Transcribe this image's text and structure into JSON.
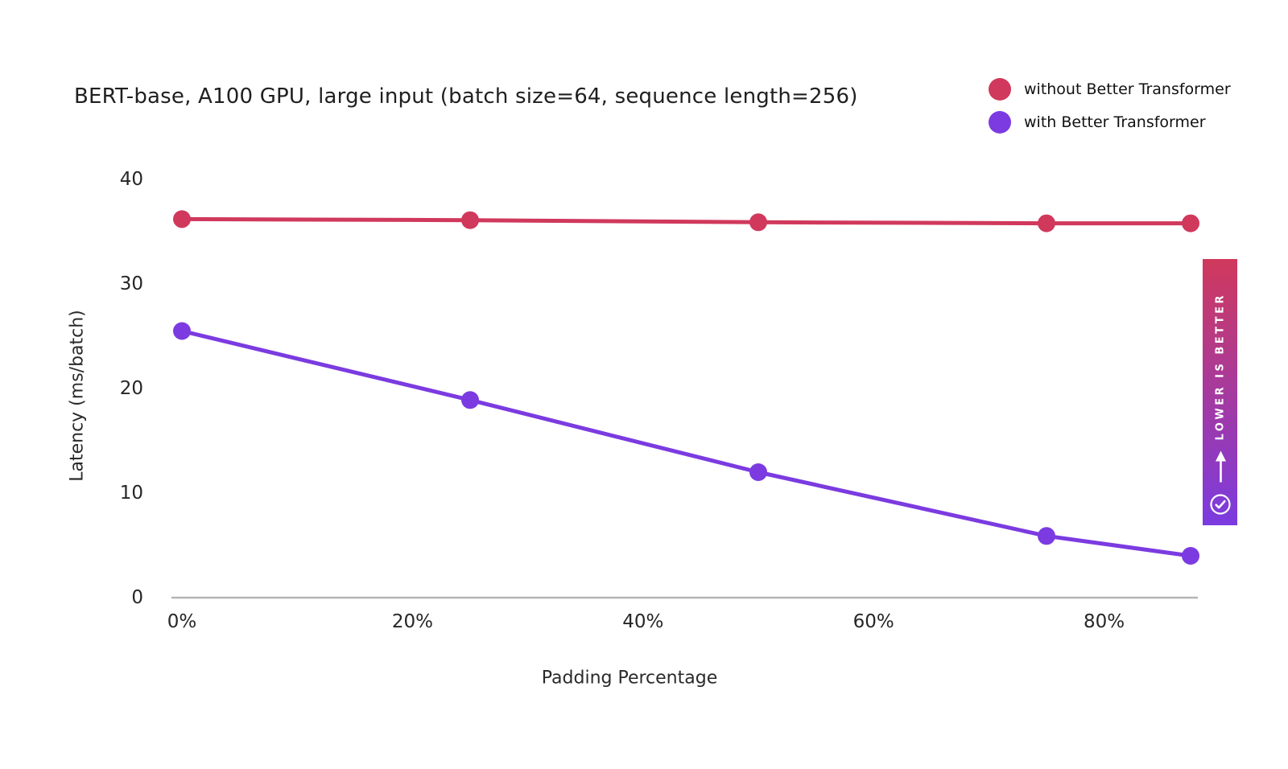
{
  "chart_data": {
    "type": "line",
    "title": "BERT-base, A100 GPU, large input (batch size=64, sequence length=256)",
    "xlabel": "Padding Percentage",
    "ylabel": "Latency (ms/batch)",
    "x": [
      0,
      25,
      50,
      75,
      87.5
    ],
    "series": [
      {
        "name": "without Better Transformer",
        "color": "#d0395c",
        "values": [
          36.2,
          36.1,
          35.9,
          35.8,
          35.8
        ]
      },
      {
        "name": "with Better Transformer",
        "color": "#7b3be0",
        "values": [
          25.5,
          18.9,
          12.0,
          5.9,
          4.0
        ]
      }
    ],
    "x_ticks": {
      "labels": [
        "0%",
        "20%",
        "40%",
        "60%",
        "80%"
      ],
      "values": [
        0,
        20,
        40,
        60,
        80
      ]
    },
    "y_ticks": [
      0,
      10,
      20,
      30,
      40
    ],
    "xlim": [
      0,
      90
    ],
    "ylim": [
      0,
      43
    ],
    "grid": false,
    "legend_position": "top-right",
    "axis_line_color": "#b5b5b5",
    "text_color": "#262626"
  },
  "badge": {
    "text": "LOWER IS BETTER",
    "gradient_top": "#d0395c",
    "gradient_bottom": "#7b3be0",
    "icons": [
      "down-arrow",
      "check-circle"
    ]
  }
}
